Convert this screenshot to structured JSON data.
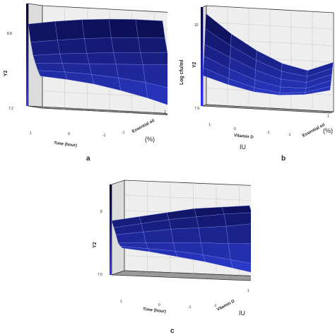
{
  "colors": {
    "wall_back": "#eeeeee",
    "wall_side": "#dcdcdc",
    "floor": "#9a9a9a",
    "edge": "#333333",
    "bar_dark": "#000033",
    "bar_light": "#3333ff",
    "surf_dark": "#05053a",
    "surf_light": "#2f3fd8",
    "grid": "#8aa0ff"
  },
  "chart_data": [
    {
      "type": "surface",
      "panel_label": "a",
      "zlabel": "Y2",
      "zticks": [
        "8.8",
        "7.2"
      ],
      "xlabel": "Time (hour)",
      "ylabel": "Essential oil",
      "yunit": "(%)",
      "xticks": [
        "1",
        "0",
        "-1"
      ],
      "yticks": [
        "1",
        "-1"
      ],
      "zlim": [
        7.0,
        9.0
      ],
      "surface": [
        [
          8.6,
          8.68,
          8.74,
          8.78,
          8.8,
          8.8
        ],
        [
          8.25,
          8.32,
          8.38,
          8.42,
          8.45,
          8.47
        ],
        [
          8.0,
          8.06,
          8.1,
          8.14,
          8.16,
          8.2
        ],
        [
          7.85,
          7.88,
          7.9,
          7.92,
          7.94,
          7.96
        ],
        [
          7.72,
          7.72,
          7.7,
          7.66,
          7.6,
          7.5
        ],
        [
          7.62,
          7.58,
          7.52,
          7.42,
          7.3,
          7.15
        ]
      ]
    },
    {
      "type": "surface",
      "panel_label": "b",
      "zlabel": "Y2",
      "zlabel_extra": "Log cfu/ml",
      "zticks": [
        "10",
        "7.9"
      ],
      "xlabel": "Vitamin D",
      "xunit": "IU",
      "ylabel": "Essential oil",
      "yunit": "(%)",
      "xticks": [
        "1",
        "0",
        "-1"
      ],
      "yticks": [
        "1",
        "-1"
      ],
      "zlim": [
        7.6,
        10.2
      ],
      "surface": [
        [
          8.4,
          8.2,
          8.05,
          8.0,
          8.05,
          8.2
        ],
        [
          8.6,
          8.35,
          8.15,
          8.05,
          8.1,
          8.3
        ],
        [
          8.9,
          8.6,
          8.35,
          8.2,
          8.2,
          8.45
        ],
        [
          9.2,
          8.9,
          8.6,
          8.4,
          8.35,
          8.6
        ],
        [
          9.6,
          9.2,
          8.85,
          8.6,
          8.5,
          8.75
        ],
        [
          10.0,
          9.5,
          9.1,
          8.8,
          8.65,
          8.9
        ]
      ]
    },
    {
      "type": "surface",
      "panel_label": "c",
      "zlabel": "Y2",
      "zticks": [
        "8",
        "7.6"
      ],
      "xlabel": "Time (hour)",
      "ylabel": "Vitamin D",
      "yunit": "IU",
      "xticks": [
        "1",
        "0",
        "-1"
      ],
      "yticks": [
        "1",
        "-1"
      ],
      "zlim": [
        7.5,
        8.2
      ],
      "surface": [
        [
          7.92,
          7.96,
          8.0,
          8.04,
          8.06,
          8.08
        ],
        [
          7.86,
          7.9,
          7.94,
          7.97,
          8.0,
          8.02
        ],
        [
          7.8,
          7.83,
          7.86,
          7.88,
          7.9,
          7.93
        ],
        [
          7.73,
          7.74,
          7.75,
          7.76,
          7.76,
          7.77
        ],
        [
          7.7,
          7.69,
          7.68,
          7.66,
          7.63,
          7.6
        ],
        [
          7.68,
          7.66,
          7.63,
          7.6,
          7.56,
          7.52
        ]
      ]
    }
  ]
}
